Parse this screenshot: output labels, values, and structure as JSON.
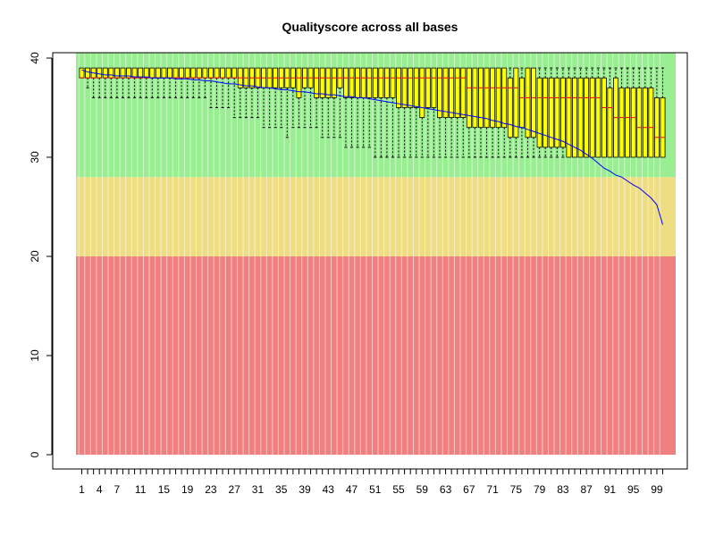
{
  "chart_data": {
    "type": "box",
    "title": "Qualityscore across all bases",
    "xlabel": "",
    "ylabel": "",
    "ylim": [
      0,
      40
    ],
    "yticks": [
      0,
      10,
      20,
      30,
      40
    ],
    "x_tick_labels": [
      "1",
      "4",
      "7",
      "11",
      "15",
      "19",
      "23",
      "27",
      "31",
      "35",
      "39",
      "43",
      "47",
      "51",
      "55",
      "59",
      "63",
      "67",
      "71",
      "75",
      "79",
      "83",
      "87",
      "91",
      "95",
      "99"
    ],
    "quality_bands": [
      {
        "name": "poor",
        "from": 0,
        "to": 20,
        "color": "#f08080"
      },
      {
        "name": "reasonable",
        "from": 20,
        "to": 28,
        "color": "#eedd82"
      },
      {
        "name": "good",
        "from": 28,
        "to": 40.5,
        "color": "#98ee90"
      }
    ],
    "box_fill": "#ffff00",
    "median_color": "#ff0000",
    "mean_line_color": "#0000ff",
    "positions": [
      1,
      2,
      3,
      4,
      5,
      6,
      7,
      8,
      9,
      10,
      11,
      12,
      13,
      14,
      15,
      16,
      17,
      18,
      19,
      20,
      21,
      22,
      23,
      24,
      25,
      26,
      27,
      28,
      29,
      30,
      31,
      32,
      33,
      34,
      35,
      36,
      37,
      38,
      39,
      40,
      41,
      42,
      43,
      44,
      45,
      46,
      47,
      48,
      49,
      50,
      51,
      52,
      53,
      54,
      55,
      56,
      57,
      58,
      59,
      60,
      61,
      62,
      63,
      64,
      65,
      66,
      67,
      68,
      69,
      70,
      71,
      72,
      73,
      74,
      75,
      76,
      77,
      78,
      79,
      80,
      81,
      82,
      83,
      84,
      85,
      86,
      87,
      88,
      89,
      90,
      91,
      92,
      93,
      94,
      95,
      96,
      97,
      98,
      99,
      100
    ],
    "q1": [
      38,
      38,
      38,
      38,
      38,
      38,
      38,
      38,
      38,
      38,
      38,
      38,
      38,
      38,
      38,
      38,
      38,
      38,
      38,
      38,
      38,
      38,
      38,
      38,
      38,
      38,
      38,
      37,
      37,
      37,
      37,
      37,
      37,
      37,
      37,
      37,
      37,
      36,
      37,
      37,
      36,
      36,
      36,
      36,
      37,
      36,
      36,
      36,
      36,
      36,
      36,
      36,
      36,
      36,
      35,
      35,
      35,
      35,
      34,
      35,
      35,
      34,
      34,
      34,
      34,
      34,
      33,
      33,
      33,
      33,
      33,
      33,
      33,
      32,
      32,
      33,
      32,
      32,
      31,
      31,
      31,
      31,
      31,
      30,
      30,
      30,
      30,
      30,
      30,
      30,
      30,
      30,
      30,
      30,
      30,
      30,
      30,
      30,
      30,
      30
    ],
    "median": [
      38,
      38,
      38,
      38,
      38,
      38,
      38,
      38,
      38,
      38,
      38,
      38,
      38,
      38,
      38,
      38,
      38,
      38,
      38,
      38,
      38,
      38,
      38,
      38,
      38,
      38,
      38,
      38,
      38,
      38,
      38,
      38,
      38,
      38,
      38,
      38,
      38,
      38,
      38,
      38,
      38,
      38,
      38,
      38,
      38,
      38,
      38,
      38,
      38,
      38,
      38,
      38,
      38,
      38,
      38,
      38,
      38,
      38,
      38,
      38,
      38,
      38,
      38,
      38,
      38,
      38,
      37,
      37,
      37,
      37,
      37,
      37,
      37,
      37,
      37,
      36,
      36,
      36,
      36,
      36,
      36,
      36,
      36,
      36,
      36,
      36,
      36,
      36,
      36,
      35,
      35,
      34,
      34,
      34,
      34,
      33,
      33,
      33,
      32,
      32
    ],
    "q3": [
      39,
      39,
      39,
      39,
      39,
      39,
      39,
      39,
      39,
      39,
      39,
      39,
      39,
      39,
      39,
      39,
      39,
      39,
      39,
      39,
      39,
      39,
      39,
      39,
      39,
      39,
      39,
      39,
      39,
      39,
      39,
      39,
      39,
      39,
      39,
      39,
      39,
      39,
      39,
      39,
      39,
      39,
      39,
      39,
      39,
      39,
      39,
      39,
      39,
      39,
      39,
      39,
      39,
      39,
      39,
      39,
      39,
      39,
      39,
      39,
      39,
      39,
      39,
      39,
      39,
      39,
      39,
      39,
      39,
      39,
      39,
      39,
      39,
      38,
      39,
      38,
      39,
      39,
      38,
      38,
      38,
      38,
      38,
      38,
      38,
      38,
      38,
      38,
      38,
      38,
      37,
      38,
      37,
      37,
      37,
      37,
      37,
      37,
      36,
      36
    ],
    "whisker_low": [
      38,
      37,
      36,
      36,
      36,
      36,
      36,
      36,
      36,
      36,
      36,
      36,
      36,
      36,
      36,
      36,
      36,
      36,
      36,
      36,
      36,
      36,
      35,
      35,
      35,
      35,
      34,
      34,
      34,
      34,
      34,
      33,
      33,
      33,
      33,
      32,
      33,
      33,
      33,
      33,
      33,
      32,
      32,
      32,
      32,
      31,
      31,
      31,
      31,
      31,
      30,
      30,
      30,
      30,
      30,
      30,
      30,
      30,
      30,
      30,
      30,
      30,
      30,
      30,
      30,
      30,
      30,
      30,
      30,
      30,
      30,
      30,
      30,
      30,
      30,
      30,
      30,
      30,
      30,
      30,
      30,
      30,
      30,
      30,
      30,
      30,
      30,
      30,
      30,
      30,
      30,
      30,
      30,
      30,
      30,
      30,
      30,
      30,
      30,
      30
    ],
    "whisker_high": [
      39,
      39,
      39,
      39,
      39,
      39,
      39,
      39,
      39,
      39,
      39,
      39,
      39,
      39,
      39,
      39,
      39,
      39,
      39,
      39,
      39,
      39,
      39,
      39,
      39,
      39,
      39,
      39,
      39,
      39,
      39,
      39,
      39,
      39,
      39,
      39,
      39,
      39,
      39,
      39,
      39,
      39,
      39,
      39,
      39,
      39,
      39,
      39,
      39,
      39,
      39,
      39,
      39,
      39,
      39,
      39,
      39,
      39,
      39,
      39,
      39,
      39,
      39,
      39,
      39,
      39,
      39,
      39,
      39,
      39,
      39,
      39,
      39,
      39,
      39,
      39,
      39,
      39,
      39,
      39,
      39,
      39,
      39,
      39,
      39,
      39,
      39,
      39,
      39,
      39,
      39,
      39,
      39,
      39,
      39,
      39,
      39,
      39,
      39,
      39
    ],
    "mean": [
      38.8,
      38.6,
      38.5,
      38.4,
      38.3,
      38.3,
      38.2,
      38.2,
      38.2,
      38.1,
      38.1,
      38.1,
      38.0,
      38.0,
      38.0,
      38.0,
      37.9,
      37.9,
      37.9,
      37.8,
      37.8,
      37.7,
      37.7,
      37.6,
      37.5,
      37.4,
      37.4,
      37.3,
      37.2,
      37.2,
      37.1,
      37.0,
      37.0,
      36.9,
      36.8,
      36.8,
      36.7,
      36.6,
      36.6,
      36.5,
      36.4,
      36.4,
      36.3,
      36.3,
      36.2,
      36.1,
      36.1,
      36.0,
      36.0,
      35.9,
      35.8,
      35.7,
      35.6,
      35.5,
      35.4,
      35.3,
      35.2,
      35.1,
      35.0,
      34.9,
      34.8,
      34.7,
      34.6,
      34.5,
      34.4,
      34.3,
      34.2,
      34.1,
      34.0,
      33.9,
      33.7,
      33.6,
      33.4,
      33.3,
      33.1,
      33.0,
      32.8,
      32.6,
      32.4,
      32.2,
      32.0,
      31.8,
      31.6,
      31.3,
      31.0,
      30.7,
      30.3,
      29.9,
      29.4,
      28.9,
      28.6,
      28.2,
      28.0,
      27.6,
      27.2,
      26.9,
      26.4,
      25.9,
      25.2,
      23.2
    ]
  }
}
